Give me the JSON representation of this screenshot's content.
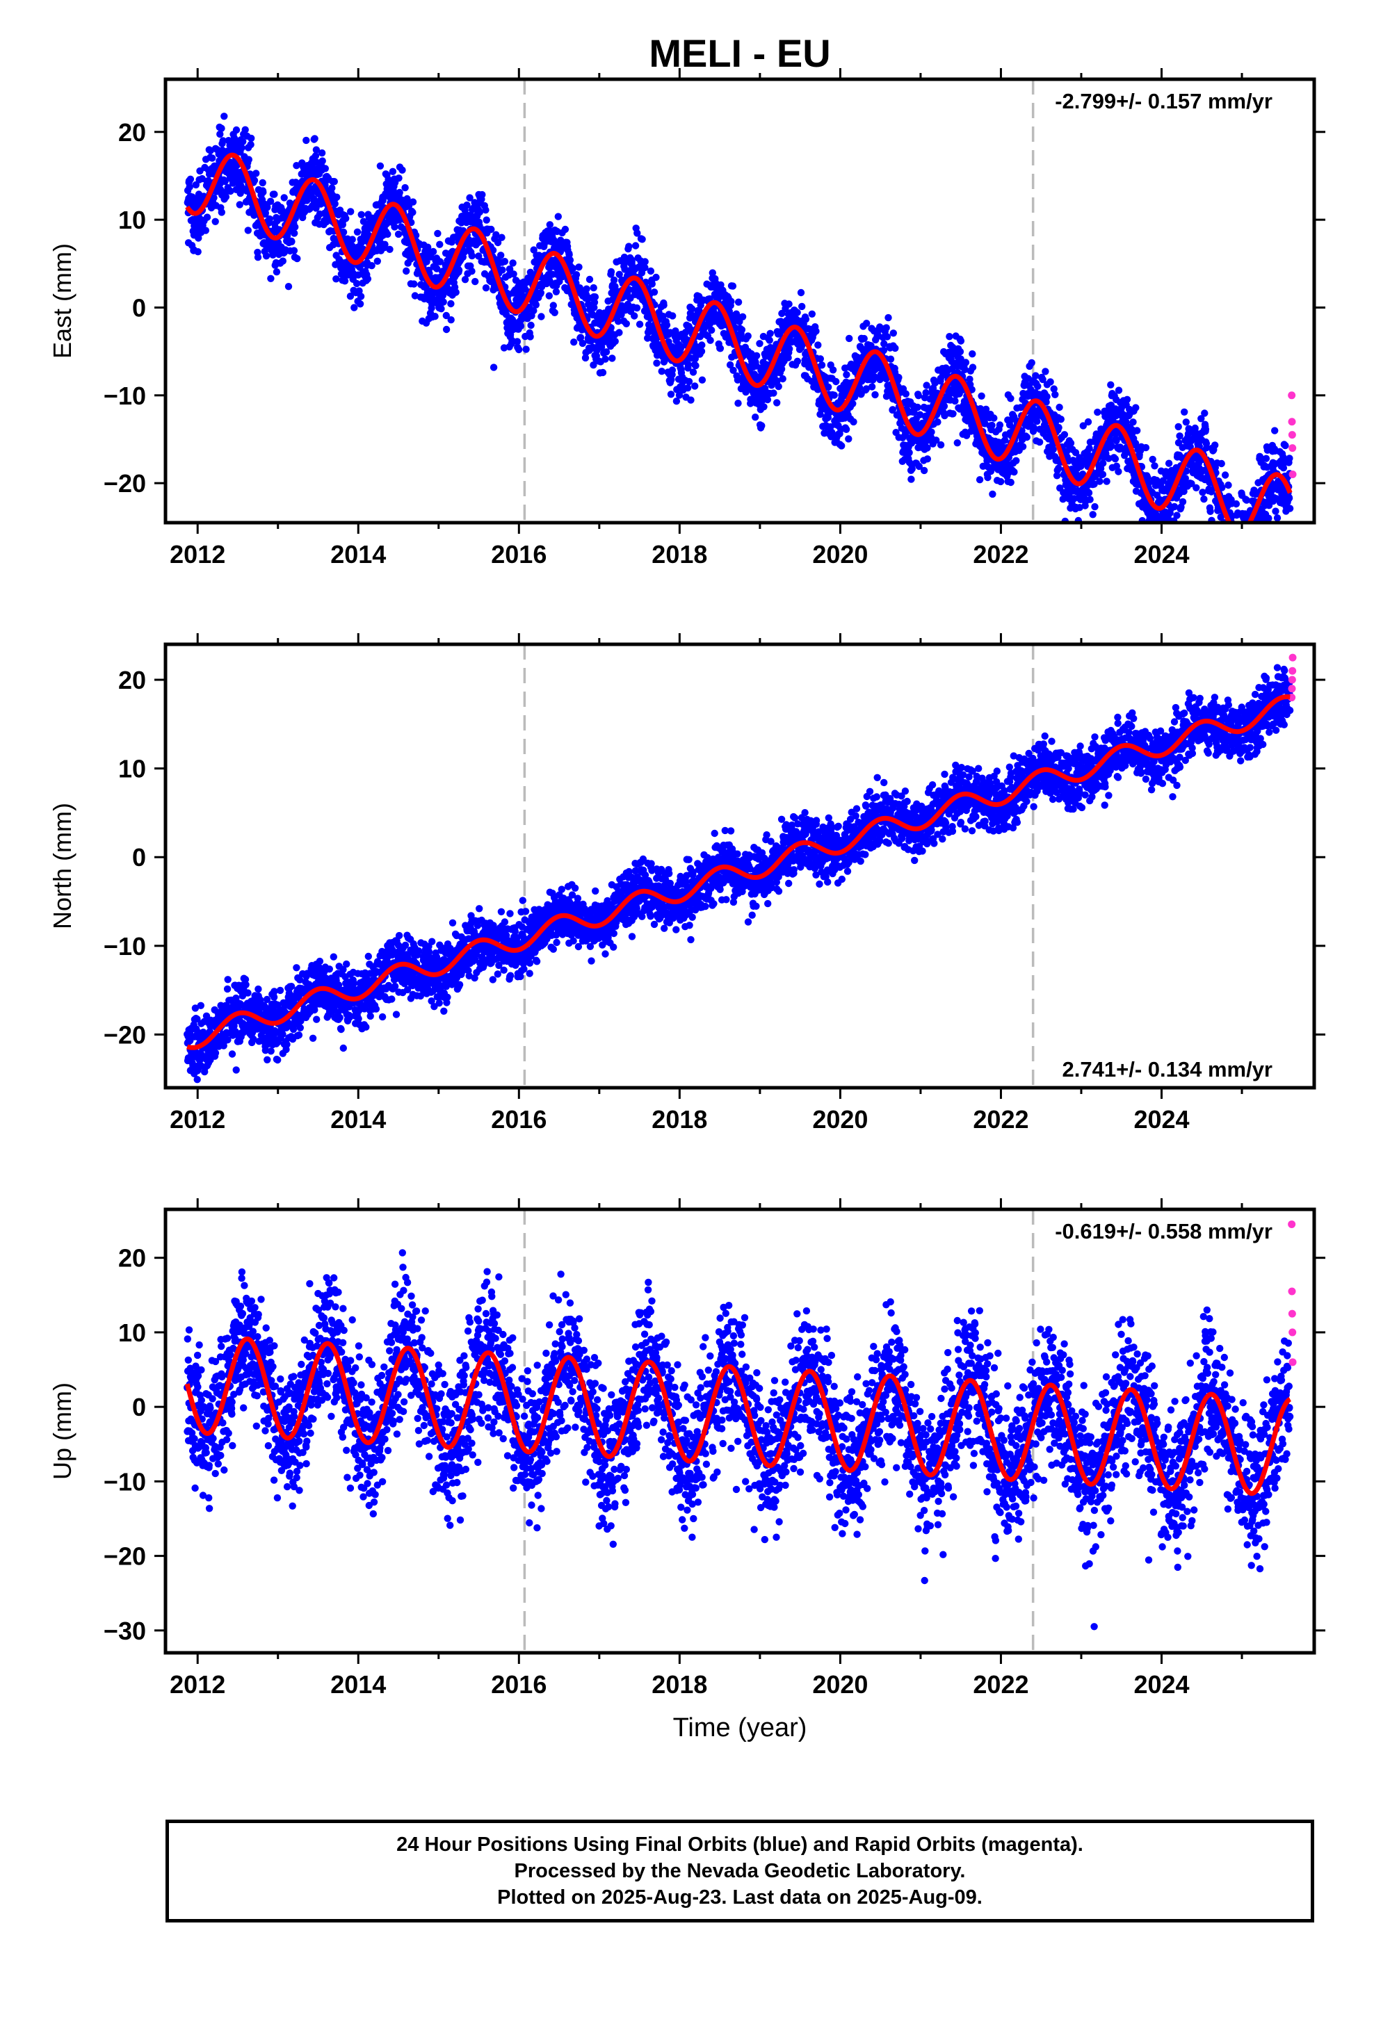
{
  "title": "MELI - EU",
  "xlabel": "Time (year)",
  "colors": {
    "final_orbits": "#0000ff",
    "rapid_orbits": "#ff33cc",
    "model_fit": "#ff0000",
    "equipment_change": "#bbbbbb"
  },
  "caption": [
    "24 Hour Positions Using Final Orbits (blue) and Rapid Orbits (magenta).",
    "Processed by the Nevada Geodetic Laboratory.",
    "Plotted on 2025-Aug-23. Last data on 2025-Aug-09."
  ],
  "chart_data": [
    {
      "type": "scatter",
      "component": "east",
      "ylabel": "East (mm)",
      "rate_label": "-2.799+/- 0.157 mm/yr",
      "rate_label_position": "top-right",
      "xlim": [
        2011.6,
        2025.9
      ],
      "ylim": [
        -24.5,
        26.0
      ],
      "xticks": [
        2012,
        2014,
        2016,
        2018,
        2020,
        2022,
        2024
      ],
      "yticks": [
        -20,
        -10,
        0,
        10,
        20
      ],
      "data_start": 2011.87,
      "data_end": 2025.6,
      "model": {
        "rate": -2.799,
        "value_at_2012": 14.6,
        "annual_amplitude": 4.0,
        "annual_peak": 0.45
      },
      "equipment_changes": [
        2016.07,
        2022.4
      ],
      "rapid_points": [
        -10,
        -13,
        -14.5,
        -16,
        -19
      ]
    },
    {
      "type": "scatter",
      "component": "north",
      "ylabel": "North (mm)",
      "rate_label": "2.741+/- 0.134 mm/yr",
      "rate_label_position": "bottom-right",
      "xlim": [
        2011.6,
        2025.9
      ],
      "ylim": [
        -26.0,
        24.0
      ],
      "xticks": [
        2012,
        2014,
        2016,
        2018,
        2020,
        2022,
        2024
      ],
      "yticks": [
        -20,
        -10,
        0,
        10,
        20
      ],
      "data_start": 2011.87,
      "data_end": 2025.6,
      "model": {
        "rate": 2.741,
        "value_at_2012": -20.2,
        "annual_amplitude": 1.2,
        "annual_peak": 0.5
      },
      "equipment_changes": [
        2016.07,
        2022.4
      ],
      "rapid_points": [
        18,
        19,
        20,
        21,
        22.5
      ]
    },
    {
      "type": "scatter",
      "component": "up",
      "ylabel": "Up (mm)",
      "rate_label": "-0.619+/- 0.558 mm/yr",
      "rate_label_position": "top-right",
      "xlim": [
        2011.6,
        2025.9
      ],
      "ylim": [
        -33.0,
        26.5
      ],
      "xticks": [
        2012,
        2014,
        2016,
        2018,
        2020,
        2022,
        2024
      ],
      "yticks": [
        -30,
        -20,
        -10,
        0,
        10,
        20
      ],
      "data_start": 2011.87,
      "data_end": 2025.6,
      "model": {
        "rate": -0.619,
        "value_at_2012": 3.0,
        "annual_amplitude": 6.5,
        "annual_peak": 0.62
      },
      "equipment_changes": [
        2016.07,
        2022.4
      ],
      "rapid_points": [
        24.5,
        15.5,
        12.5,
        10,
        6
      ]
    }
  ]
}
